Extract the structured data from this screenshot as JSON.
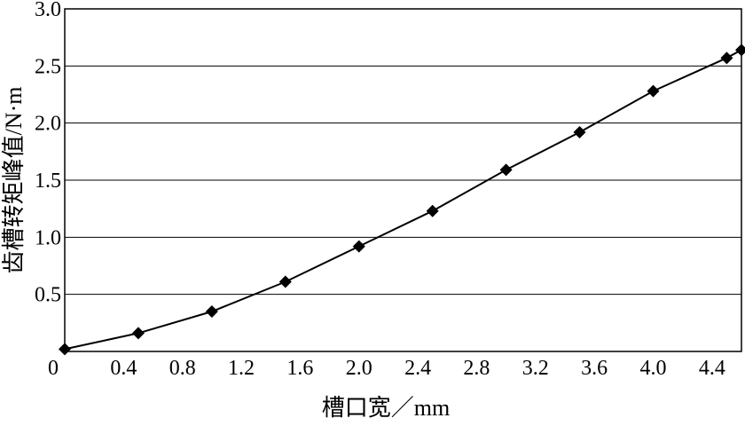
{
  "chart_data": {
    "type": "line",
    "title": "",
    "xlabel": "槽口宽／mm",
    "ylabel": "齿槽转矩峰值/N·m",
    "xlim": [
      0.0,
      4.6
    ],
    "ylim": [
      0.0,
      3.0
    ],
    "x_ticks": [
      0.4,
      0.8,
      1.2,
      1.6,
      2.0,
      2.4,
      2.8,
      3.2,
      3.6,
      4.0,
      4.4
    ],
    "x_tick_labels": [
      "0.4",
      "0.8",
      "1.2",
      "1.6",
      "2.0",
      "2.4",
      "2.8",
      "3.2",
      "3.6",
      "4.0",
      "4.4"
    ],
    "y_ticks": [
      0.5,
      1.0,
      1.5,
      2.0,
      2.5,
      3.0
    ],
    "y_tick_labels": [
      "0.5",
      "1.0",
      "1.5",
      "2.0",
      "2.5",
      "3.0"
    ],
    "origin_label": "0",
    "grid": "horizontal",
    "marker": "diamond",
    "series": [
      {
        "x": [
          0.0,
          0.5,
          1.0,
          1.5,
          2.0,
          2.5,
          3.0,
          3.5,
          4.0,
          4.5,
          4.6
        ],
        "values": [
          0.02,
          0.16,
          0.35,
          0.61,
          0.92,
          1.23,
          1.59,
          1.92,
          2.28,
          2.57,
          2.64
        ]
      }
    ],
    "colors": {
      "line": "#000000",
      "grid": "#000000",
      "marker": "#000000"
    }
  }
}
